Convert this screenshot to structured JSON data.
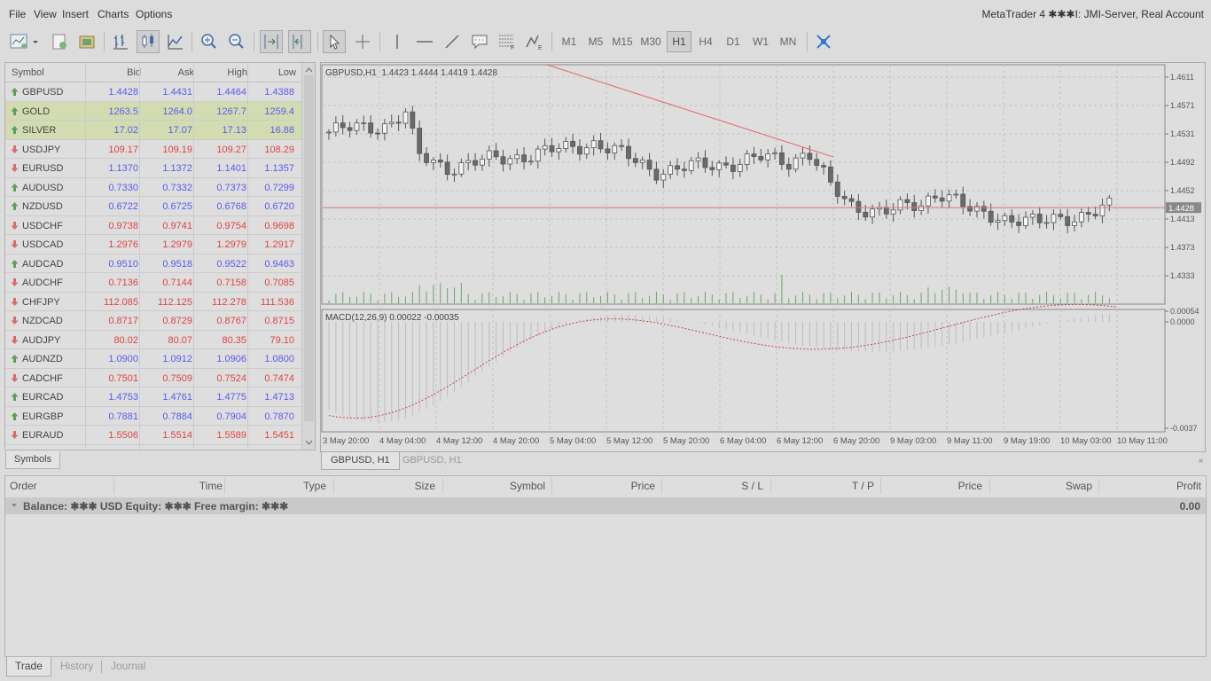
{
  "menu": [
    "File",
    "View",
    "Insert",
    "Charts",
    "Options"
  ],
  "app_title": "MetaTrader 4 ✱✱✱I: JMI-Server, Real Account",
  "toolbar": {
    "timeframes": [
      "M1",
      "M5",
      "M15",
      "M30",
      "H1",
      "H4",
      "D1",
      "W1",
      "MN"
    ],
    "active_timeframe": "H1"
  },
  "market_watch": {
    "columns": [
      "Symbol",
      "Bid",
      "Ask",
      "High",
      "Low"
    ],
    "rows": [
      {
        "symbol": "GBPUSD",
        "bid": "1.4428",
        "ask": "1.4431",
        "high": "1.4464",
        "low": "1.4388",
        "dir": "up",
        "color": "blue",
        "highlight": false
      },
      {
        "symbol": "GOLD",
        "bid": "1263.5",
        "ask": "1264.0",
        "high": "1267.7",
        "low": "1259.4",
        "dir": "up",
        "color": "blue",
        "highlight": true
      },
      {
        "symbol": "SILVER",
        "bid": "17.02",
        "ask": "17.07",
        "high": "17.13",
        "low": "16.88",
        "dir": "up",
        "color": "blue",
        "highlight": true
      },
      {
        "symbol": "USDJPY",
        "bid": "109.17",
        "ask": "109.19",
        "high": "109.27",
        "low": "108.29",
        "dir": "down",
        "color": "red",
        "highlight": false
      },
      {
        "symbol": "EURUSD",
        "bid": "1.1370",
        "ask": "1.1372",
        "high": "1.1401",
        "low": "1.1357",
        "dir": "down",
        "color": "blue",
        "highlight": false
      },
      {
        "symbol": "AUDUSD",
        "bid": "0.7330",
        "ask": "0.7332",
        "high": "0.7373",
        "low": "0.7299",
        "dir": "up",
        "color": "blue",
        "highlight": false
      },
      {
        "symbol": "NZDUSD",
        "bid": "0.6722",
        "ask": "0.6725",
        "high": "0.6768",
        "low": "0.6720",
        "dir": "up",
        "color": "blue",
        "highlight": false
      },
      {
        "symbol": "USDCHF",
        "bid": "0.9738",
        "ask": "0.9741",
        "high": "0.9754",
        "low": "0.9698",
        "dir": "down",
        "color": "red",
        "highlight": false
      },
      {
        "symbol": "USDCAD",
        "bid": "1.2976",
        "ask": "1.2979",
        "high": "1.2979",
        "low": "1.2917",
        "dir": "down",
        "color": "red",
        "highlight": false
      },
      {
        "symbol": "AUDCAD",
        "bid": "0.9510",
        "ask": "0.9518",
        "high": "0.9522",
        "low": "0.9463",
        "dir": "up",
        "color": "blue",
        "highlight": false
      },
      {
        "symbol": "AUDCHF",
        "bid": "0.7136",
        "ask": "0.7144",
        "high": "0.7158",
        "low": "0.7085",
        "dir": "down",
        "color": "red",
        "highlight": false
      },
      {
        "symbol": "CHFJPY",
        "bid": "112.085",
        "ask": "112.125",
        "high": "112.278",
        "low": "111.536",
        "dir": "down",
        "color": "red",
        "highlight": false
      },
      {
        "symbol": "NZDCAD",
        "bid": "0.8717",
        "ask": "0.8729",
        "high": "0.8767",
        "low": "0.8715",
        "dir": "down",
        "color": "red",
        "highlight": false
      },
      {
        "symbol": "AUDJPY",
        "bid": "80.02",
        "ask": "80.07",
        "high": "80.35",
        "low": "79.10",
        "dir": "down",
        "color": "red",
        "highlight": false
      },
      {
        "symbol": "AUDNZD",
        "bid": "1.0900",
        "ask": "1.0912",
        "high": "1.0906",
        "low": "1.0800",
        "dir": "up",
        "color": "blue",
        "highlight": false
      },
      {
        "symbol": "CADCHF",
        "bid": "0.7501",
        "ask": "0.7509",
        "high": "0.7524",
        "low": "0.7474",
        "dir": "down",
        "color": "red",
        "highlight": false
      },
      {
        "symbol": "EURCAD",
        "bid": "1.4753",
        "ask": "1.4761",
        "high": "1.4775",
        "low": "1.4713",
        "dir": "up",
        "color": "blue",
        "highlight": false
      },
      {
        "symbol": "EURGBP",
        "bid": "0.7881",
        "ask": "0.7884",
        "high": "0.7904",
        "low": "0.7870",
        "dir": "up",
        "color": "blue",
        "highlight": false
      },
      {
        "symbol": "EURAUD",
        "bid": "1.5506",
        "ask": "1.5514",
        "high": "1.5589",
        "low": "1.5451",
        "dir": "down",
        "color": "red",
        "highlight": false
      }
    ],
    "tab": "Symbols"
  },
  "chart": {
    "header": "GBPUSD,H1  1.4423 1.4444 1.4419 1.4428",
    "price_labels": [
      "1.4611",
      "1.4571",
      "1.4531",
      "1.4492",
      "1.4452",
      "1.4413",
      "1.4373",
      "1.4333"
    ],
    "current_price": "1.4428",
    "macd_header": "MACD(12,26,9) 0.00022 -0.00035",
    "macd_labels": [
      "0.00054",
      "0.0000",
      "-0.0037"
    ],
    "time_labels": [
      "3 May 20:00",
      "4 May 04:00",
      "4 May 12:00",
      "4 May 20:00",
      "5 May 04:00",
      "5 May 12:00",
      "5 May 20:00",
      "6 May 04:00",
      "6 May 12:00",
      "6 May 20:00",
      "9 May 03:00",
      "9 May 11:00",
      "9 May 19:00",
      "10 May 03:00",
      "10 May 11:00"
    ],
    "tabs": [
      "GBPUSD, H1",
      "GBPUSD, H1"
    ]
  },
  "terminal": {
    "columns": [
      "Order",
      "Time",
      "Type",
      "Size",
      "Symbol",
      "Price",
      "S / L",
      "T / P",
      "Price",
      "Swap",
      "Profit"
    ],
    "balance_text": "Balance: ✱✱✱ USD  Equity: ✱✱✱  Free margin: ✱✱✱",
    "profit": "0.00",
    "tabs": [
      "Trade",
      "History",
      "Journal"
    ]
  },
  "colors": {
    "up_arrow": "#5aa05a",
    "down_arrow": "#d96b6b",
    "blue": "#5a5aee",
    "red": "#dd4444",
    "volume": "#66a866",
    "trendline": "#e07070"
  }
}
